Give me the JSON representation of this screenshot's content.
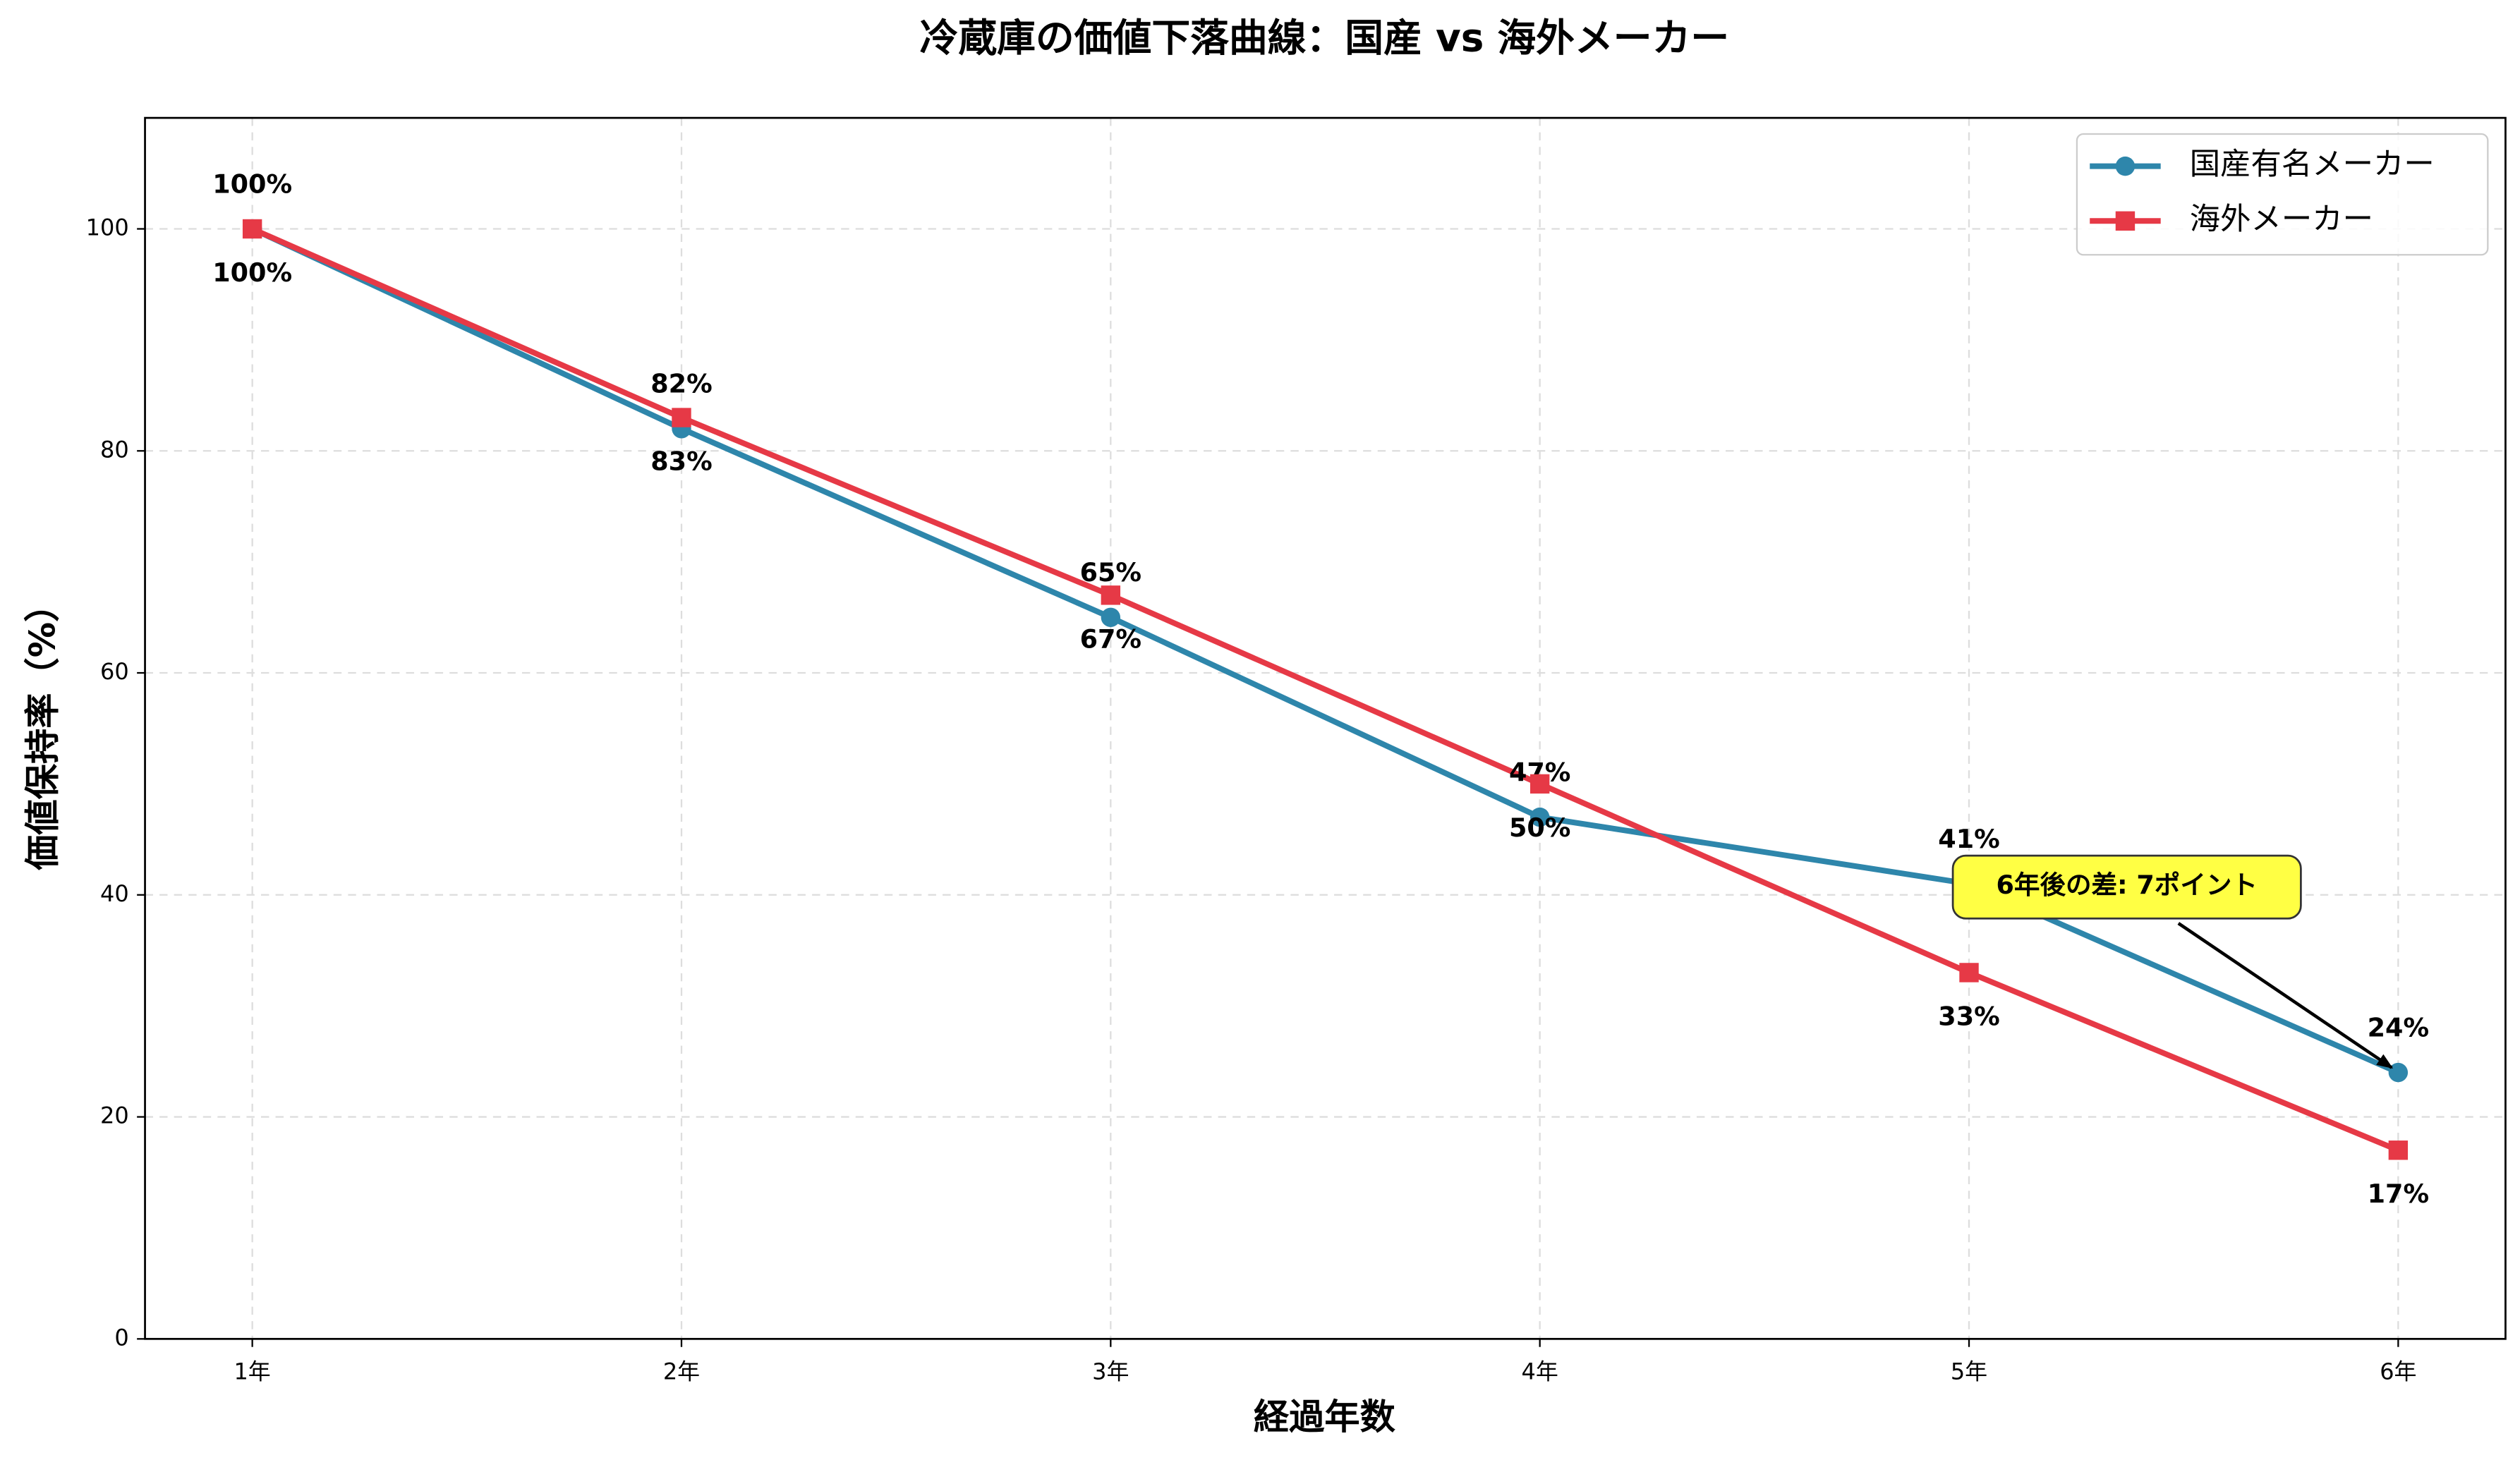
{
  "chart_data": {
    "type": "line",
    "title": "冷蔵庫の価値下落曲線：国産 vs 海外メーカー",
    "x_label": "経過年数",
    "y_label": "価値保持率（%）",
    "categories": [
      "1年",
      "2年",
      "3年",
      "4年",
      "5年",
      "6年"
    ],
    "series": [
      {
        "name": "国産有名メーカー",
        "color": "#2e86ab",
        "marker": "circle",
        "values": [
          100,
          82,
          65,
          47,
          41,
          24
        ],
        "value_labels": [
          "100%",
          "82%",
          "65%",
          "47%",
          "41%",
          "24%"
        ]
      },
      {
        "name": "海外メーカー",
        "color": "#e63946",
        "marker": "square",
        "values": [
          100,
          83,
          67,
          50,
          33,
          17
        ],
        "value_labels": [
          "100%",
          "83%",
          "67%",
          "50%",
          "33%",
          "17%"
        ]
      }
    ],
    "ylim": [
      0,
      110
    ],
    "yticks": [
      0,
      20,
      40,
      60,
      80,
      100
    ],
    "grid": true,
    "legend": "upper right",
    "annotation": "6年後の差: 7ポイント"
  }
}
